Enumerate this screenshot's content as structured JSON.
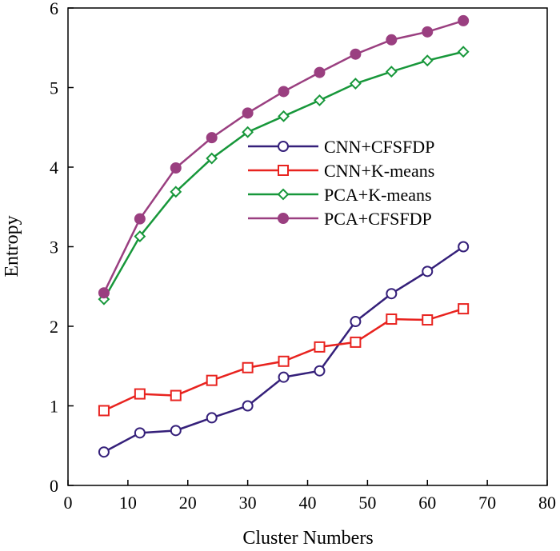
{
  "chart_data": {
    "type": "line",
    "title": "",
    "xlabel": "Cluster Numbers",
    "ylabel": "Entropy",
    "xlim": [
      0,
      80
    ],
    "ylim": [
      0,
      6
    ],
    "xticks": [
      0,
      10,
      20,
      30,
      40,
      50,
      60,
      70,
      80
    ],
    "yticks": [
      0,
      1,
      2,
      3,
      4,
      5,
      6
    ],
    "grid": false,
    "legend_position": "upper-center",
    "x": [
      6,
      12,
      18,
      24,
      30,
      36,
      42,
      48,
      54,
      60,
      66
    ],
    "series": [
      {
        "name": "CNN+CFSFDP",
        "color": "#35207a",
        "marker": "open-circle",
        "values": [
          0.42,
          0.66,
          0.69,
          0.85,
          1.0,
          1.36,
          1.44,
          2.06,
          2.41,
          2.69,
          3.0
        ]
      },
      {
        "name": "CNN+K-means",
        "color": "#e8231f",
        "marker": "open-square",
        "values": [
          0.94,
          1.15,
          1.13,
          1.32,
          1.48,
          1.56,
          1.74,
          1.8,
          2.09,
          2.08,
          2.22
        ]
      },
      {
        "name": "PCA+K-means",
        "color": "#17973a",
        "marker": "open-diamond",
        "values": [
          2.34,
          3.13,
          3.69,
          4.11,
          4.44,
          4.64,
          4.84,
          5.05,
          5.2,
          5.34,
          5.45
        ]
      },
      {
        "name": "PCA+CFSFDP",
        "color": "#9a3f80",
        "marker": "filled-circle",
        "values": [
          2.42,
          3.35,
          3.99,
          4.37,
          4.68,
          4.95,
          5.19,
          5.42,
          5.6,
          5.7,
          5.84
        ]
      }
    ]
  }
}
